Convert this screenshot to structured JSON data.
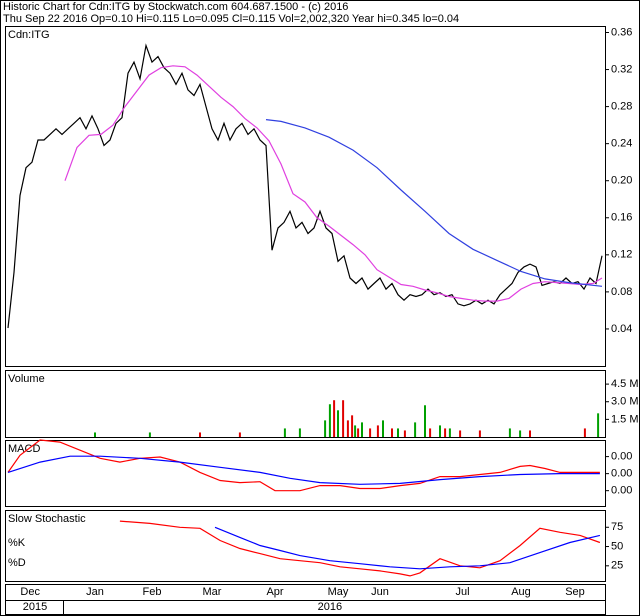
{
  "chart_data": [
    {
      "type": "line",
      "title": "Historic Chart for Cdn:ITG by Stockwatch.com 604.687.1500 - (c) 2016",
      "subtitle": "Thu Sep 22 2016  Op=0.10  Hi=0.115  Lo=0.095  Cl=0.115  Vol=2,002,320  Year hi=0.345  lo=0.04",
      "label": "Cdn:ITG",
      "xlim": [
        0,
        200
      ],
      "ylim": [
        0,
        0.367
      ],
      "yticks": [
        0.04,
        0.08,
        0.12,
        0.16,
        {
          "value": 0.2,
          "label": "0.20"
        },
        0.24,
        0.28,
        0.32,
        0.36
      ],
      "series": [
        {
          "color": "#000000",
          "x": [
            1,
            3,
            5,
            7,
            9,
            11,
            13,
            15,
            17,
            19,
            21,
            23,
            25,
            27,
            29,
            31,
            33,
            35,
            37,
            39,
            41,
            43,
            45,
            47,
            49,
            51,
            53,
            55,
            57,
            59,
            61,
            63,
            65,
            67,
            69,
            71,
            73,
            75,
            77,
            79,
            81,
            83,
            85,
            87,
            89,
            91,
            93,
            95,
            97,
            99,
            101,
            103,
            105,
            107,
            109,
            111,
            113,
            115,
            117,
            119,
            121,
            123,
            125,
            127,
            129,
            131,
            133,
            135,
            137,
            139,
            141,
            143,
            145,
            147,
            149,
            151,
            153,
            155,
            157,
            159,
            161,
            163,
            165,
            167,
            169,
            171,
            173,
            175,
            177,
            179,
            181,
            183,
            185,
            187,
            189,
            191,
            193,
            195,
            197,
            199
          ],
          "values": [
            0.041,
            0.101,
            0.184,
            0.214,
            0.22,
            0.244,
            0.244,
            0.25,
            0.256,
            0.25,
            0.256,
            0.262,
            0.268,
            0.256,
            0.27,
            0.256,
            0.238,
            0.244,
            0.262,
            0.268,
            0.316,
            0.328,
            0.31,
            0.346,
            0.328,
            0.334,
            0.322,
            0.316,
            0.304,
            0.316,
            0.298,
            0.292,
            0.304,
            0.28,
            0.256,
            0.244,
            0.262,
            0.244,
            0.256,
            0.262,
            0.25,
            0.256,
            0.244,
            0.238,
            0.125,
            0.149,
            0.155,
            0.167,
            0.149,
            0.155,
            0.143,
            0.149,
            0.167,
            0.149,
            0.143,
            0.113,
            0.119,
            0.095,
            0.089,
            0.095,
            0.083,
            0.089,
            0.095,
            0.083,
            0.089,
            0.077,
            0.071,
            0.077,
            0.075,
            0.077,
            0.083,
            0.077,
            0.079,
            0.075,
            0.077,
            0.067,
            0.065,
            0.067,
            0.071,
            0.067,
            0.071,
            0.067,
            0.077,
            0.083,
            0.089,
            0.101,
            0.107,
            0.11,
            0.107,
            0.087,
            0.089,
            0.091,
            0.089,
            0.095,
            0.089,
            0.091,
            0.083,
            0.095,
            0.089,
            0.119
          ]
        },
        {
          "color": "#e040e0",
          "x": [
            20,
            24,
            28,
            32,
            36,
            40,
            44,
            48,
            52,
            56,
            60,
            64,
            68,
            72,
            76,
            80,
            84,
            88,
            92,
            96,
            100,
            104,
            108,
            112,
            116,
            120,
            124,
            128,
            132,
            136,
            140,
            144,
            148,
            152,
            156,
            160,
            164,
            168,
            172,
            176,
            180,
            184,
            188,
            192,
            196,
            199
          ],
          "values": [
            0.2,
            0.236,
            0.249,
            0.25,
            0.26,
            0.28,
            0.297,
            0.314,
            0.322,
            0.324,
            0.323,
            0.314,
            0.302,
            0.29,
            0.28,
            0.267,
            0.257,
            0.243,
            0.218,
            0.186,
            0.177,
            0.16,
            0.151,
            0.141,
            0.131,
            0.12,
            0.104,
            0.096,
            0.088,
            0.086,
            0.082,
            0.079,
            0.075,
            0.073,
            0.071,
            0.07,
            0.07,
            0.073,
            0.083,
            0.089,
            0.091,
            0.09,
            0.089,
            0.088,
            0.089,
            0.095
          ]
        },
        {
          "color": "#3040e0",
          "x": [
            87,
            92,
            100,
            108,
            116,
            124,
            132,
            140,
            148,
            156,
            164,
            172,
            180,
            188,
            199
          ],
          "values": [
            0.266,
            0.264,
            0.257,
            0.247,
            0.233,
            0.214,
            0.19,
            0.167,
            0.143,
            0.126,
            0.114,
            0.102,
            0.094,
            0.09,
            0.086
          ]
        }
      ]
    },
    {
      "type": "bar",
      "label": "Volume",
      "xlim": [
        0,
        200
      ],
      "ylim": [
        0,
        5700000
      ],
      "yticks": [
        {
          "value": 1500000,
          "label": "1.5 M"
        },
        {
          "value": 3000000,
          "label": "3.0 M"
        },
        {
          "value": 4500000,
          "label": "4.5 M"
        }
      ],
      "series": [
        {
          "color": "#00a000",
          "x": [
            30,
            48.3,
            93.3,
            98.3,
            106.7,
            108.3,
            111,
            116.7,
            119,
            126,
            131,
            136.7,
            140,
            145,
            148.3,
            168.3,
            171.7,
            197.7
          ],
          "values": [
            386000,
            386000,
            729000,
            729000,
            1414000,
            2786000,
            2271000,
            986000,
            1243000,
            1414000,
            729000,
            1243000,
            2700000,
            986000,
            729000,
            729000,
            557000,
            2014000
          ]
        },
        {
          "color": "#e00000",
          "x": [
            65,
            78.3,
            109.7,
            112.7,
            114.3,
            115.7,
            117.7,
            121.7,
            124.3,
            129,
            133.3,
            141.7,
            146.7,
            151.7,
            158.3,
            175,
            193.3
          ],
          "values": [
            386000,
            386000,
            3129000,
            3129000,
            1414000,
            1843000,
            729000,
            729000,
            986000,
            729000,
            557000,
            729000,
            729000,
            557000,
            557000,
            557000,
            729000
          ]
        }
      ]
    },
    {
      "type": "line",
      "label": "MACD",
      "xlim": [
        0,
        200
      ],
      "ylim": [
        -0.0076,
        0.0079
      ],
      "yticks": [
        {
          "value": -0.004,
          "label": "0.00"
        },
        {
          "value": 0,
          "label": "0.00"
        },
        {
          "value": 0.004,
          "label": "0.00"
        }
      ],
      "series": [
        {
          "color": "#ff0000",
          "x": [
            1,
            5,
            11.7,
            18.3,
            25,
            31.7,
            38.3,
            45,
            51.7,
            58.3,
            65,
            71.7,
            78.3,
            85,
            90,
            98.3,
            105,
            111.7,
            118.3,
            125,
            131.7,
            138.3,
            145,
            151.7,
            158.3,
            165,
            171.7,
            175,
            180,
            185,
            191.7,
            198.3
          ],
          "values": [
            0.0003,
            0.0043,
            0.0079,
            0.0074,
            0.0055,
            0.0036,
            0.0027,
            0.0036,
            0.0039,
            0.0027,
            0.0003,
            -0.0016,
            -0.0021,
            -0.0019,
            -0.004,
            -0.004,
            -0.0028,
            -0.0028,
            -0.0035,
            -0.0035,
            -0.0028,
            -0.0023,
            -0.0007,
            -0.0007,
            -0.0002,
            0.0003,
            0.0017,
            0.0019,
            0.0012,
            0.0003,
            0.0003,
            0.0003
          ]
        },
        {
          "color": "#0000ff",
          "x": [
            1,
            11.7,
            21.7,
            31.7,
            45,
            58.3,
            71.7,
            85,
            95,
            105,
            118.3,
            131.7,
            145,
            158.3,
            171.7,
            185,
            198.3
          ],
          "values": [
            0.0003,
            0.0027,
            0.0041,
            0.0041,
            0.0036,
            0.0027,
            0.0015,
            0.0003,
            -0.0011,
            -0.0021,
            -0.0025,
            -0.0023,
            -0.0014,
            -0.0007,
            -0.0002,
            0,
            0
          ]
        }
      ]
    },
    {
      "type": "line",
      "label": "Slow Stochastic",
      "xlim": [
        0,
        200
      ],
      "ylim": [
        5.3,
        97.4
      ],
      "yticks": [
        25,
        50,
        75
      ],
      "xticks": [
        {
          "value": 8.4,
          "label": "Dec"
        },
        {
          "value": 30,
          "label": "Jan"
        },
        {
          "value": 49,
          "label": "Feb"
        },
        {
          "value": 69,
          "label": "Mar"
        },
        {
          "value": 90,
          "label": "Apr"
        },
        {
          "value": 111,
          "label": "May"
        },
        {
          "value": 125,
          "label": "Jun"
        },
        {
          "value": 152.5,
          "label": "Jul"
        },
        {
          "value": 172,
          "label": "Aug"
        },
        {
          "value": 190,
          "label": "Sep"
        }
      ],
      "year_ticks": [
        {
          "value": 10,
          "label": "2015"
        },
        {
          "value": 108.3,
          "label": "2016"
        }
      ],
      "series": [
        {
          "name": "%K",
          "color": "#ff0000",
          "x": [
            38.3,
            48.3,
            58.3,
            65,
            71.7,
            78.3,
            85,
            91.7,
            98.3,
            105,
            111.7,
            118.3,
            125,
            131.7,
            135,
            138.3,
            145,
            151.7,
            158.3,
            165,
            171.7,
            178.3,
            185,
            191.7,
            198.3
          ],
          "values": [
            83,
            80,
            75,
            73.7,
            57.9,
            47.4,
            40.8,
            34.2,
            31.6,
            29,
            23.7,
            21.1,
            18.4,
            14.5,
            11.9,
            15.8,
            34.2,
            25,
            22.4,
            31.6,
            51.3,
            73.7,
            68.5,
            64.5,
            55.3
          ]
        },
        {
          "name": "%D",
          "color": "#0000ff",
          "x": [
            70,
            78.3,
            85,
            91.7,
            98.3,
            108.3,
            118.3,
            128.3,
            138.3,
            148.3,
            158.3,
            168.3,
            178.3,
            188.3,
            198.3
          ],
          "values": [
            75,
            61.9,
            51.3,
            44.8,
            38.2,
            31.6,
            27.7,
            23.7,
            21.1,
            23.7,
            25,
            29,
            42.1,
            55.3,
            64.5
          ]
        }
      ]
    }
  ]
}
